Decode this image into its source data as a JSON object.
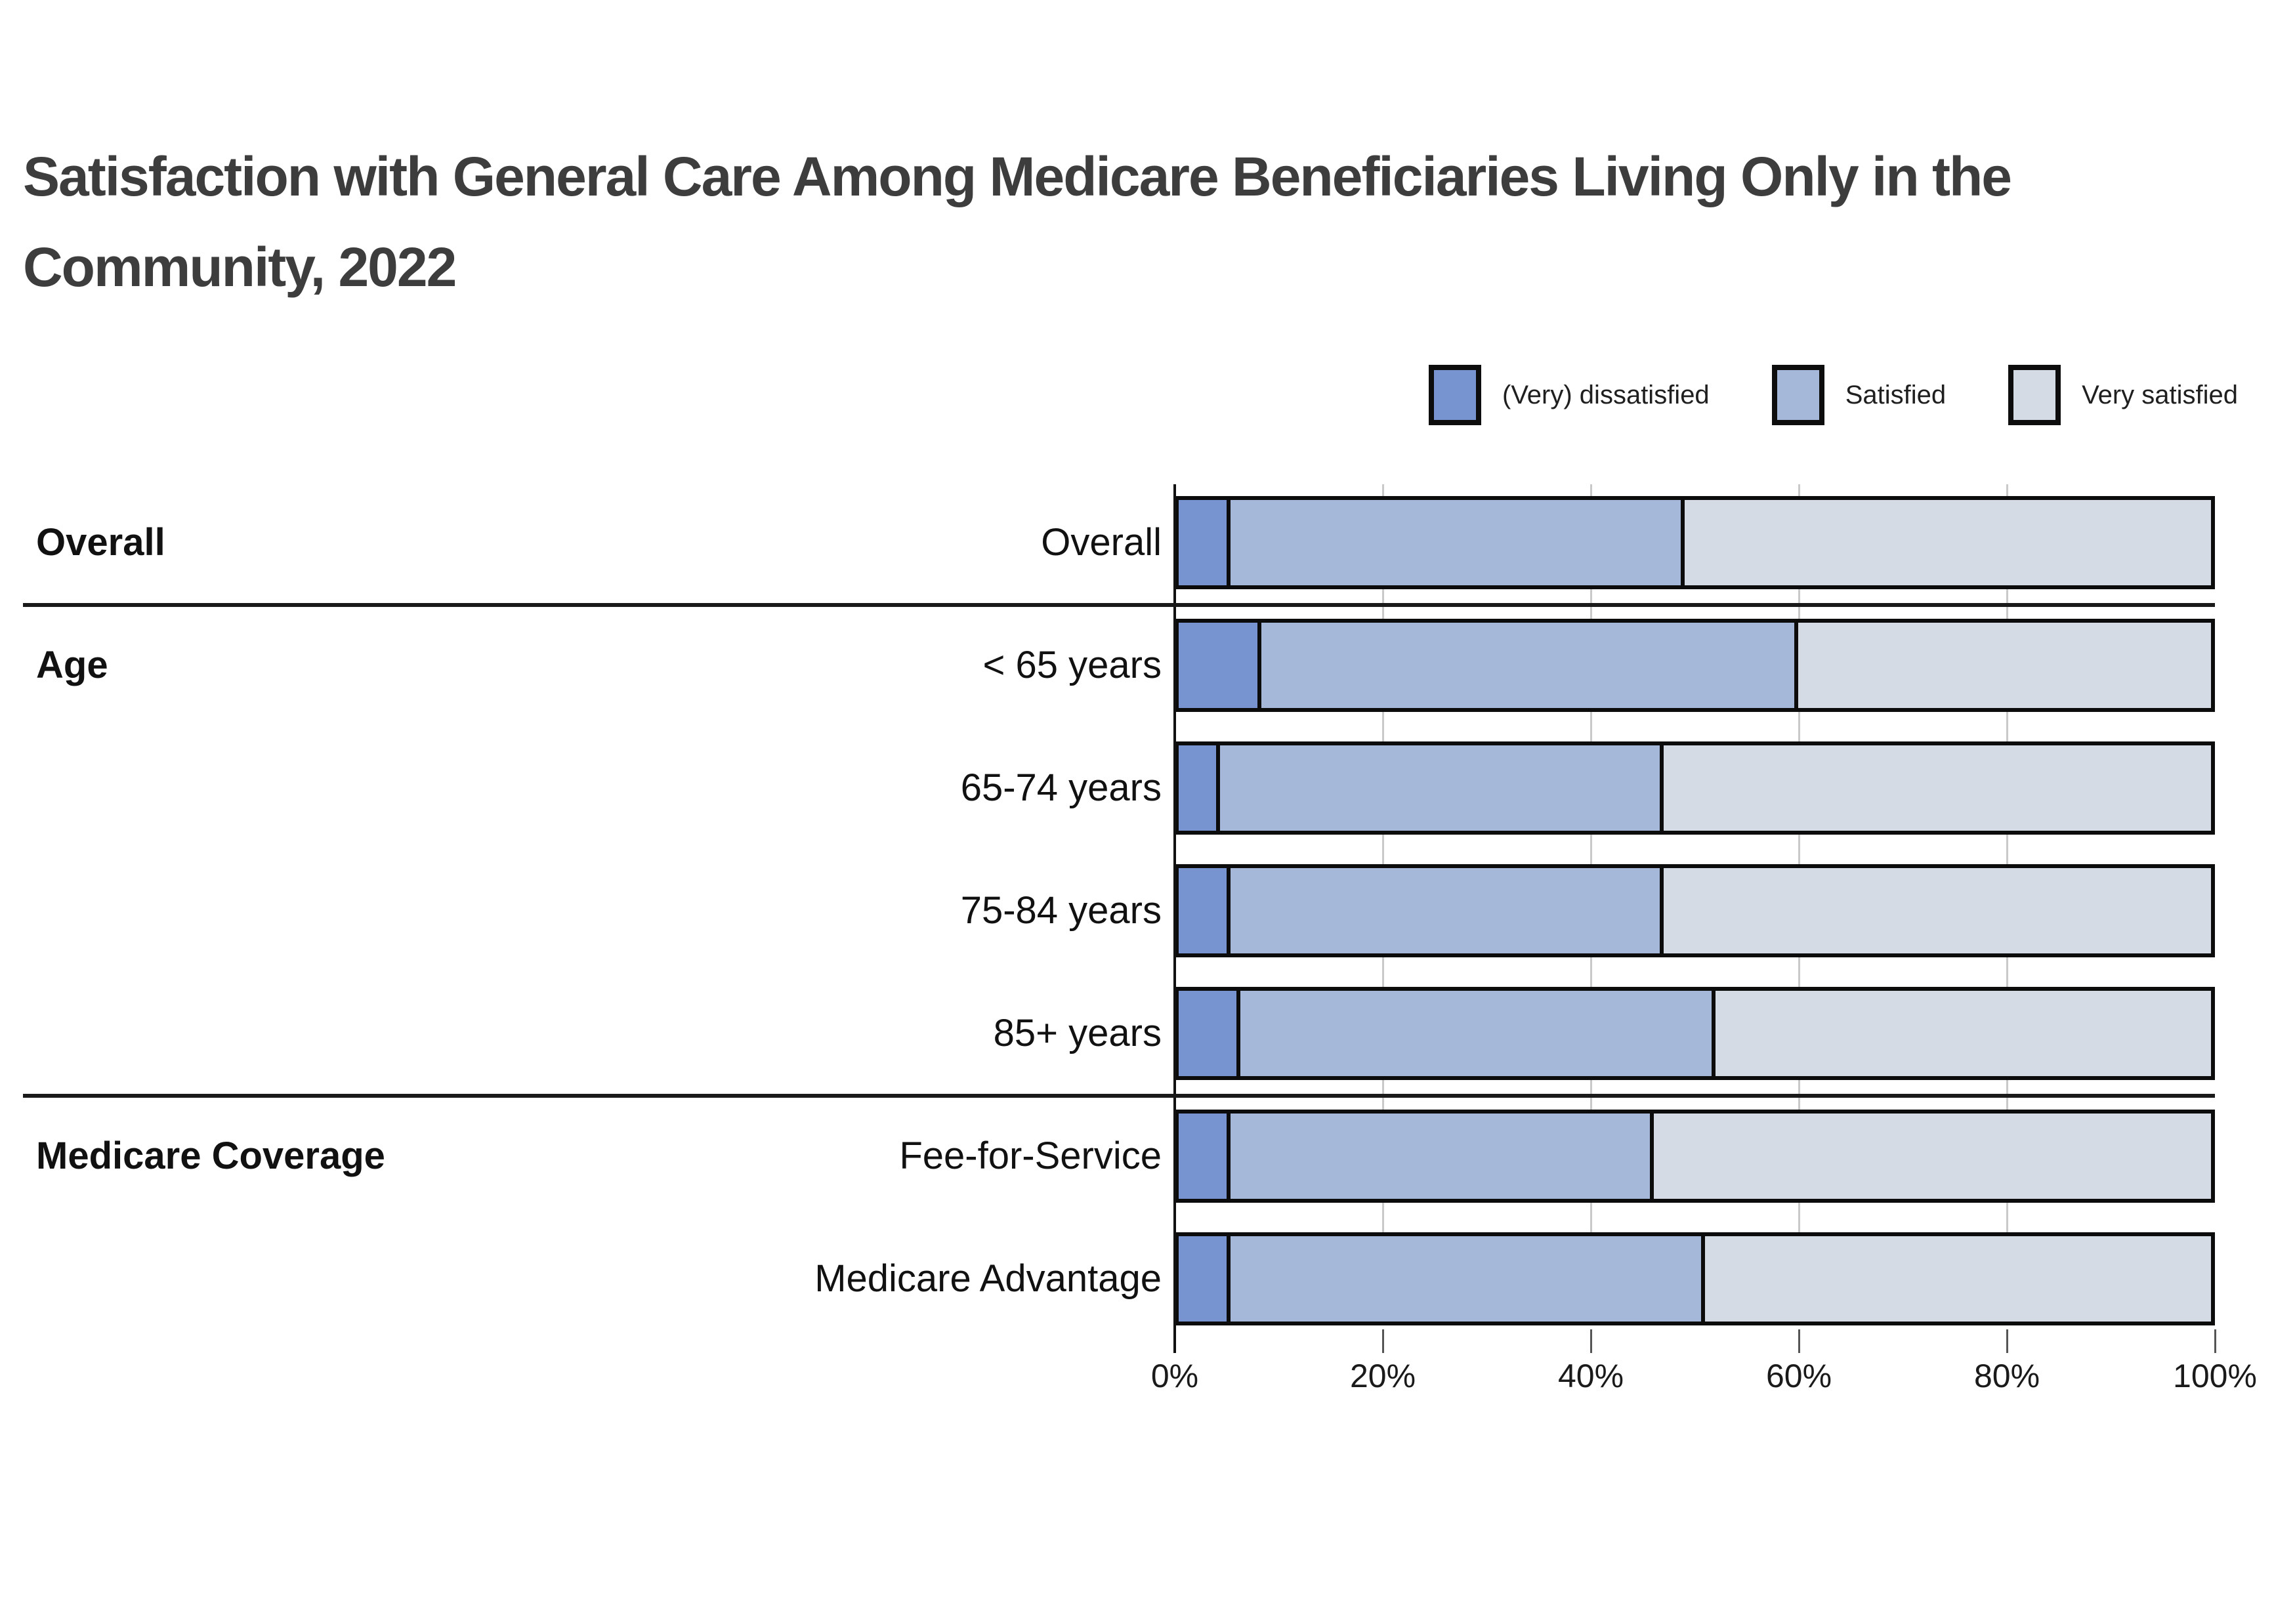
{
  "title": {
    "line1": "Satisfaction with General Care Among Medicare Beneficiaries Living Only in the",
    "line2": "Community, 2022",
    "full": "Satisfaction with General Care Among Medicare Beneficiaries Living Only in the Community, 2022"
  },
  "legend": [
    {
      "label": "(Very) dissatisfied",
      "color": "#7794d0"
    },
    {
      "label": "Satisfied",
      "color": "#a5b8da"
    },
    {
      "label": "Very satisfied",
      "color": "#d5dbe4"
    }
  ],
  "axis": {
    "ticks": [
      "0%",
      "20%",
      "40%",
      "60%",
      "80%",
      "100%"
    ]
  },
  "chart_data": {
    "type": "bar",
    "orientation": "horizontal",
    "stacked": true,
    "title": "Satisfaction with General Care Among Medicare Beneficiaries Living Only in the Community, 2022",
    "categories": [
      "Overall",
      "< 65 years",
      "65-74 years",
      "75-84 years",
      "85+ years",
      "Fee-for-Service",
      "Medicare Advantage"
    ],
    "groups": [
      {
        "label": "Overall",
        "row_indexes": [
          0
        ]
      },
      {
        "label": "Age",
        "row_indexes": [
          1,
          2,
          3,
          4
        ]
      },
      {
        "label": "Medicare Coverage",
        "row_indexes": [
          5,
          6
        ]
      }
    ],
    "series": [
      {
        "name": "(Very) dissatisfied",
        "color": "#7794d0",
        "values": [
          5,
          8,
          4,
          5,
          6,
          5,
          5
        ]
      },
      {
        "name": "Satisfied",
        "color": "#a5b8da",
        "values": [
          44,
          52,
          43,
          42,
          46,
          41,
          46
        ]
      },
      {
        "name": "Very satisfied",
        "color": "#d5dbe4",
        "values": [
          51,
          40,
          53,
          53,
          48,
          54,
          49
        ]
      }
    ],
    "xlim": [
      0,
      100
    ],
    "x_tick_labels": [
      "0%",
      "20%",
      "40%",
      "60%",
      "80%",
      "100%"
    ],
    "x_tick_values": [
      0,
      20,
      40,
      60,
      80,
      100
    ],
    "grid": true,
    "legend_position": "top-right",
    "background": "#ffffff"
  }
}
